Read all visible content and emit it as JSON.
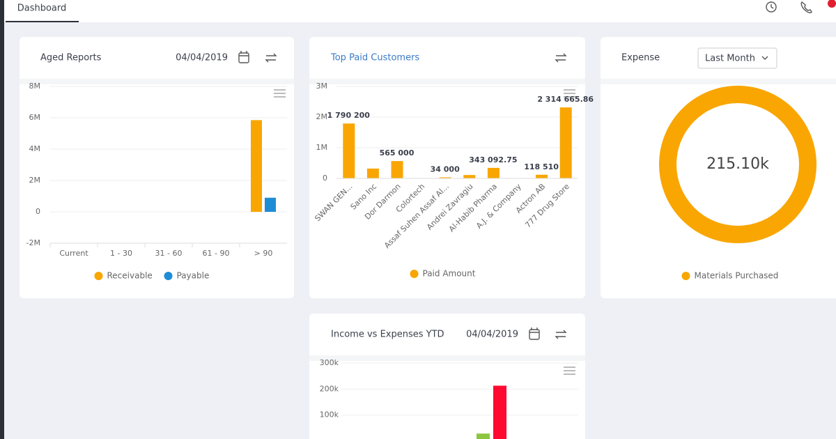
{
  "header": {
    "tab": "Dashboard"
  },
  "chart_data": [
    {
      "type": "bar",
      "title": "Aged Reports",
      "date": "04/04/2019",
      "categories": [
        "Current",
        "1 - 30",
        "31 - 60",
        "61 - 90",
        "> 90"
      ],
      "series": [
        {
          "name": "Receivable",
          "color": "#f9a602",
          "values": [
            0,
            0,
            0,
            0,
            5850000
          ]
        },
        {
          "name": "Payable",
          "color": "#1f8dd6",
          "values": [
            0,
            0,
            0,
            0,
            900000
          ]
        }
      ],
      "ylim": [
        -2000000,
        8000000
      ],
      "yticks": [
        {
          "value": -2000000,
          "label": "-2M"
        },
        0,
        {
          "value": 2000000,
          "label": "2M"
        },
        {
          "value": 4000000,
          "label": "4M"
        },
        {
          "value": 6000000,
          "label": "6M"
        },
        {
          "value": 8000000,
          "label": "8M"
        }
      ],
      "grid": true
    },
    {
      "type": "bar",
      "title": "Top Paid Customers",
      "categories": [
        "SWAN GEN...",
        "Sano Inc",
        "Dor Darmon",
        "Colortech",
        "Assaf Suhen Assaf Al...",
        "Andrei Zavragiu",
        "Al-Habib Pharma",
        "A.J. & Company",
        "Actron AB",
        "777 Drug Store"
      ],
      "series": [
        {
          "name": "Paid Amount",
          "color": "#f9a602",
          "values": [
            1790200,
            320000,
            565000,
            0,
            34000,
            110000,
            343092.75,
            0,
            118510,
            2314665.86
          ],
          "value_labels": [
            "1 790 200",
            null,
            "565 000",
            null,
            "34 000",
            null,
            "343 092.75",
            null,
            "118 510",
            "2 314 665.86"
          ]
        }
      ],
      "ylim": [
        0,
        3000000
      ],
      "yticks": [
        0,
        {
          "value": 1000000,
          "label": "1M"
        },
        {
          "value": 2000000,
          "label": "2M"
        },
        {
          "value": 3000000,
          "label": "3M"
        }
      ],
      "grid": true
    },
    {
      "type": "donut",
      "title": "Expense",
      "period": "Last Month",
      "categories": [
        "Materials Purchased"
      ],
      "values": [
        215100
      ],
      "value_labels": [
        "215.10k"
      ],
      "color": "#f9a602"
    },
    {
      "type": "bar",
      "title": "Income vs Expenses YTD",
      "date": "04/04/2019",
      "series": [
        {
          "color": "#8cc63f",
          "values": [
            29000
          ]
        },
        {
          "color": "#ff0a30",
          "values": [
            213000
          ]
        }
      ],
      "ylim": [
        0,
        300000
      ],
      "yticks": [
        {
          "value": 100000,
          "label": "100k"
        },
        {
          "value": 200000,
          "label": "200k"
        },
        {
          "value": 300000,
          "label": "300k"
        }
      ],
      "grid": true
    }
  ]
}
